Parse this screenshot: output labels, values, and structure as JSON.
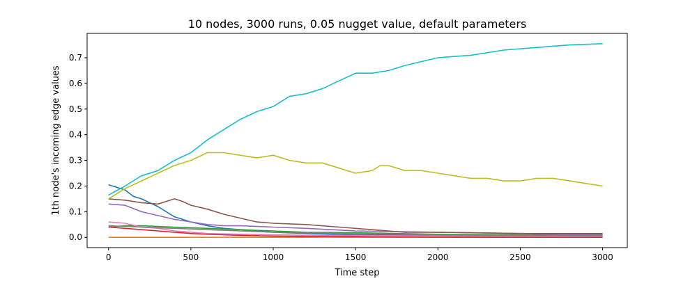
{
  "chart_data": {
    "type": "line",
    "title": "10 nodes, 3000 runs, 0.05 nugget value, default parameters",
    "xlabel": "Time step",
    "ylabel": "1th node's incoming edge values",
    "xlim": [
      -130,
      3150
    ],
    "ylim": [
      -0.04,
      0.795
    ],
    "xticks": [
      0,
      500,
      1000,
      1500,
      2000,
      2500,
      3000
    ],
    "yticks": [
      0.0,
      0.1,
      0.2,
      0.3,
      0.4,
      0.5,
      0.6,
      0.7
    ],
    "ytick_labels": [
      "0.0",
      "0.1",
      "0.2",
      "0.3",
      "0.4",
      "0.5",
      "0.6",
      "0.7"
    ],
    "grid": false,
    "legend": "none",
    "series": [
      {
        "color": "#1f77b4",
        "x": [
          0,
          50,
          100,
          150,
          200,
          300,
          400,
          500,
          600,
          700,
          800,
          1000,
          1200,
          1500,
          2000,
          2500,
          3000
        ],
        "y": [
          0.205,
          0.195,
          0.185,
          0.16,
          0.15,
          0.12,
          0.08,
          0.06,
          0.045,
          0.035,
          0.03,
          0.02,
          0.015,
          0.01,
          0.008,
          0.006,
          0.005
        ]
      },
      {
        "color": "#ff7f0e",
        "x": [
          0,
          3000
        ],
        "y": [
          0.0,
          0.0
        ]
      },
      {
        "color": "#2ca02c",
        "x": [
          0,
          100,
          200,
          400,
          600,
          800,
          1000,
          1200,
          1500,
          2000,
          2500,
          3000
        ],
        "y": [
          0.04,
          0.045,
          0.045,
          0.04,
          0.035,
          0.03,
          0.025,
          0.02,
          0.018,
          0.012,
          0.01,
          0.012
        ]
      },
      {
        "color": "#d62728",
        "x": [
          0,
          100,
          200,
          300,
          400,
          500,
          600,
          800,
          1000,
          1300,
          1600,
          2000,
          3000
        ],
        "y": [
          0.04,
          0.035,
          0.03,
          0.025,
          0.02,
          0.015,
          0.012,
          0.008,
          0.005,
          0.003,
          0.002,
          0.001,
          0.0
        ]
      },
      {
        "color": "#9467bd",
        "x": [
          0,
          100,
          200,
          300,
          400,
          500,
          600,
          700,
          800,
          1000,
          1200,
          1500,
          2000,
          2500,
          3000
        ],
        "y": [
          0.13,
          0.125,
          0.1,
          0.085,
          0.07,
          0.06,
          0.05,
          0.045,
          0.045,
          0.04,
          0.035,
          0.025,
          0.02,
          0.015,
          0.01
        ]
      },
      {
        "color": "#8c564b",
        "x": [
          0,
          100,
          200,
          300,
          350,
          400,
          450,
          500,
          600,
          700,
          800,
          900,
          1000,
          1200,
          1400,
          1600,
          1800,
          2000,
          2500,
          3000
        ],
        "y": [
          0.15,
          0.145,
          0.135,
          0.13,
          0.14,
          0.15,
          0.14,
          0.125,
          0.11,
          0.09,
          0.075,
          0.06,
          0.055,
          0.05,
          0.04,
          0.03,
          0.02,
          0.02,
          0.015,
          0.015
        ]
      },
      {
        "color": "#e377c2",
        "x": [
          0,
          100,
          200,
          300,
          400,
          500,
          600,
          800,
          1000,
          1200,
          1500,
          2000,
          2500,
          3000
        ],
        "y": [
          0.06,
          0.055,
          0.04,
          0.035,
          0.025,
          0.02,
          0.015,
          0.012,
          0.01,
          0.008,
          0.007,
          0.006,
          0.005,
          0.005
        ]
      },
      {
        "color": "#7f7f7f",
        "x": [
          0,
          200,
          400,
          600,
          800,
          1000,
          1500,
          2000,
          2500,
          3000
        ],
        "y": [
          0.045,
          0.04,
          0.035,
          0.03,
          0.025,
          0.02,
          0.015,
          0.01,
          0.008,
          0.008
        ]
      },
      {
        "color": "#bcbd22",
        "x": [
          0,
          100,
          200,
          300,
          400,
          500,
          600,
          700,
          800,
          900,
          1000,
          1100,
          1200,
          1300,
          1400,
          1500,
          1600,
          1650,
          1700,
          1800,
          1900,
          2000,
          2100,
          2200,
          2300,
          2400,
          2500,
          2600,
          2700,
          2800,
          2900,
          3000
        ],
        "y": [
          0.15,
          0.19,
          0.22,
          0.25,
          0.28,
          0.3,
          0.33,
          0.33,
          0.32,
          0.31,
          0.32,
          0.3,
          0.29,
          0.29,
          0.27,
          0.25,
          0.26,
          0.28,
          0.28,
          0.26,
          0.26,
          0.25,
          0.24,
          0.23,
          0.23,
          0.22,
          0.22,
          0.23,
          0.23,
          0.22,
          0.21,
          0.2
        ]
      },
      {
        "color": "#17becf",
        "x": [
          0,
          100,
          200,
          300,
          400,
          500,
          600,
          700,
          800,
          900,
          1000,
          1100,
          1200,
          1300,
          1400,
          1500,
          1600,
          1700,
          1800,
          2000,
          2200,
          2400,
          2600,
          2800,
          3000
        ],
        "y": [
          0.165,
          0.2,
          0.24,
          0.26,
          0.3,
          0.33,
          0.38,
          0.42,
          0.46,
          0.49,
          0.51,
          0.55,
          0.56,
          0.58,
          0.61,
          0.64,
          0.64,
          0.65,
          0.67,
          0.7,
          0.71,
          0.73,
          0.74,
          0.75,
          0.755
        ]
      }
    ]
  }
}
